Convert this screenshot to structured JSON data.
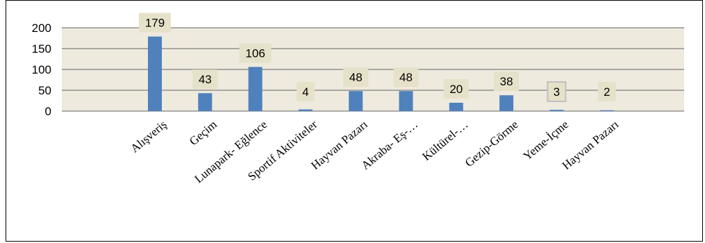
{
  "colors": {
    "bar": "#4f81bd",
    "plot_background": "#eeeade",
    "gridline": "#7f7f7f",
    "label_box": "#e6e1c9",
    "label_box_outline": "#c0c0c0"
  },
  "chart_data": {
    "type": "bar",
    "title": "",
    "xlabel": "",
    "ylabel": "",
    "ylim": [
      0,
      200
    ],
    "yticks": [
      0,
      50,
      100,
      150,
      200
    ],
    "grid": true,
    "categories": [
      "Alışveriş",
      "Geçim",
      "Lunapark- Eğlence",
      "Sportif Aktiviteler",
      "Hayvan Pazarı",
      "Akraba- Eş-…",
      "Kültürel-…",
      "Gezip-Görme",
      "Yeme-İçme",
      "Hayvan Pazarı"
    ],
    "values": [
      179,
      43,
      106,
      4,
      48,
      48,
      20,
      38,
      3,
      2
    ],
    "data_labels": [
      "179",
      "43",
      "106",
      "4",
      "48",
      "48",
      "20",
      "38",
      "3",
      "2"
    ]
  }
}
